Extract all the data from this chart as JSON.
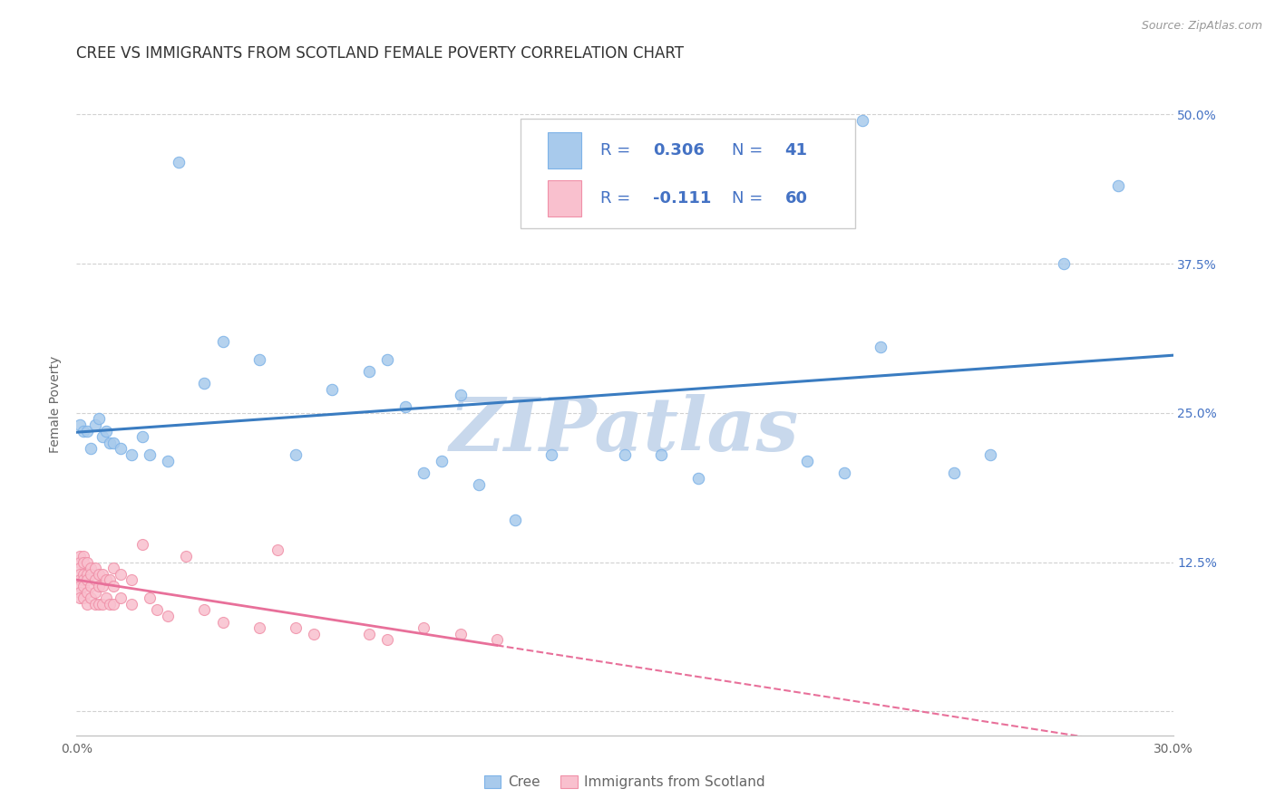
{
  "title": "CREE VS IMMIGRANTS FROM SCOTLAND FEMALE POVERTY CORRELATION CHART",
  "source": "Source: ZipAtlas.com",
  "ylabel": "Female Poverty",
  "watermark": "ZIPatlas",
  "xlim": [
    0.0,
    0.3
  ],
  "ylim": [
    -0.02,
    0.535
  ],
  "xtick_positions": [
    0.0,
    0.05,
    0.1,
    0.15,
    0.2,
    0.25,
    0.3
  ],
  "xtick_labels": [
    "0.0%",
    "",
    "",
    "",
    "",
    "",
    "30.0%"
  ],
  "ytick_positions": [
    0.0,
    0.125,
    0.25,
    0.375,
    0.5
  ],
  "ytick_labels_right": [
    "",
    "12.5%",
    "25.0%",
    "37.5%",
    "50.0%"
  ],
  "cree_color": "#A8CAEC",
  "cree_edge_color": "#7EB3E8",
  "scotland_color": "#F9C0CE",
  "scotland_edge_color": "#F090A8",
  "cree_line_color": "#3A7CC1",
  "scotland_line_color": "#E8709A",
  "background_color": "#FFFFFF",
  "grid_color": "#CCCCCC",
  "title_fontsize": 12,
  "axis_label_fontsize": 10,
  "tick_fontsize": 10,
  "legend_fontsize": 13,
  "watermark_color": "#C8D8EC",
  "watermark_fontsize": 60,
  "cree_x": [
    0.001,
    0.002,
    0.003,
    0.004,
    0.005,
    0.006,
    0.007,
    0.008,
    0.009,
    0.01,
    0.012,
    0.015,
    0.018,
    0.02,
    0.025,
    0.028,
    0.035,
    0.04,
    0.05,
    0.06,
    0.07,
    0.08,
    0.085,
    0.09,
    0.095,
    0.1,
    0.105,
    0.11,
    0.12,
    0.13,
    0.15,
    0.16,
    0.17,
    0.2,
    0.21,
    0.215,
    0.22,
    0.24,
    0.25,
    0.27,
    0.285
  ],
  "cree_y": [
    0.24,
    0.235,
    0.235,
    0.22,
    0.24,
    0.245,
    0.23,
    0.235,
    0.225,
    0.225,
    0.22,
    0.215,
    0.23,
    0.215,
    0.21,
    0.46,
    0.275,
    0.31,
    0.295,
    0.215,
    0.27,
    0.285,
    0.295,
    0.255,
    0.2,
    0.21,
    0.265,
    0.19,
    0.16,
    0.215,
    0.215,
    0.215,
    0.195,
    0.21,
    0.2,
    0.495,
    0.305,
    0.2,
    0.215,
    0.375,
    0.44
  ],
  "scotland_x": [
    0.001,
    0.001,
    0.001,
    0.001,
    0.001,
    0.001,
    0.001,
    0.001,
    0.002,
    0.002,
    0.002,
    0.002,
    0.002,
    0.002,
    0.003,
    0.003,
    0.003,
    0.003,
    0.003,
    0.004,
    0.004,
    0.004,
    0.004,
    0.005,
    0.005,
    0.005,
    0.005,
    0.006,
    0.006,
    0.006,
    0.007,
    0.007,
    0.007,
    0.008,
    0.008,
    0.009,
    0.009,
    0.01,
    0.01,
    0.01,
    0.012,
    0.012,
    0.015,
    0.015,
    0.018,
    0.02,
    0.022,
    0.025,
    0.03,
    0.035,
    0.04,
    0.05,
    0.055,
    0.06,
    0.065,
    0.08,
    0.085,
    0.095,
    0.105,
    0.115
  ],
  "scotland_y": [
    0.13,
    0.125,
    0.12,
    0.115,
    0.11,
    0.105,
    0.1,
    0.095,
    0.13,
    0.125,
    0.115,
    0.11,
    0.105,
    0.095,
    0.125,
    0.115,
    0.11,
    0.1,
    0.09,
    0.12,
    0.115,
    0.105,
    0.095,
    0.12,
    0.11,
    0.1,
    0.09,
    0.115,
    0.105,
    0.09,
    0.115,
    0.105,
    0.09,
    0.11,
    0.095,
    0.11,
    0.09,
    0.12,
    0.105,
    0.09,
    0.115,
    0.095,
    0.11,
    0.09,
    0.14,
    0.095,
    0.085,
    0.08,
    0.13,
    0.085,
    0.075,
    0.07,
    0.135,
    0.07,
    0.065,
    0.065,
    0.06,
    0.07,
    0.065,
    0.06
  ]
}
